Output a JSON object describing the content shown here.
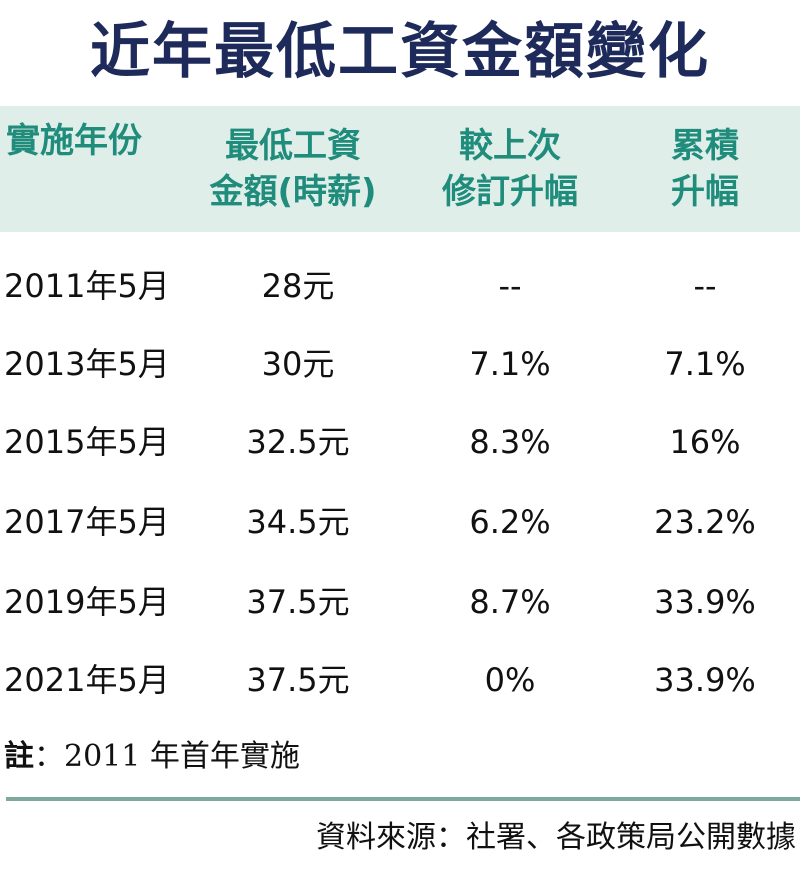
{
  "title": "近年最低工資金額變化",
  "table": {
    "headers": [
      {
        "line1": "實施年份",
        "line2": ""
      },
      {
        "line1": "最低工資",
        "line2": "金額(時薪)"
      },
      {
        "line1": "較上次",
        "line2": "修訂升幅"
      },
      {
        "line1": "累積",
        "line2": "升幅"
      }
    ],
    "rows": [
      {
        "year": "2011年5月",
        "amount": "28元",
        "change": "--",
        "cumulative": "--"
      },
      {
        "year": "2013年5月",
        "amount": "30元",
        "change": "7.1%",
        "cumulative": "7.1%"
      },
      {
        "year": "2015年5月",
        "amount": "32.5元",
        "change": "8.3%",
        "cumulative": "16%"
      },
      {
        "year": "2017年5月",
        "amount": "34.5元",
        "change": "6.2%",
        "cumulative": "23.2%"
      },
      {
        "year": "2019年5月",
        "amount": "37.5元",
        "change": "8.7%",
        "cumulative": "33.9%"
      },
      {
        "year": "2021年5月",
        "amount": "37.5元",
        "change": "0%",
        "cumulative": "33.9%"
      }
    ]
  },
  "note": {
    "label": "註",
    "text": "：2011 年首年實施"
  },
  "source": "資料來源：社署、各政策局公開數據",
  "colors": {
    "title": "#1d2a5a",
    "header_text": "#1f8c7c",
    "header_bg": "#e0eeea",
    "divider": "#7fa99e"
  }
}
